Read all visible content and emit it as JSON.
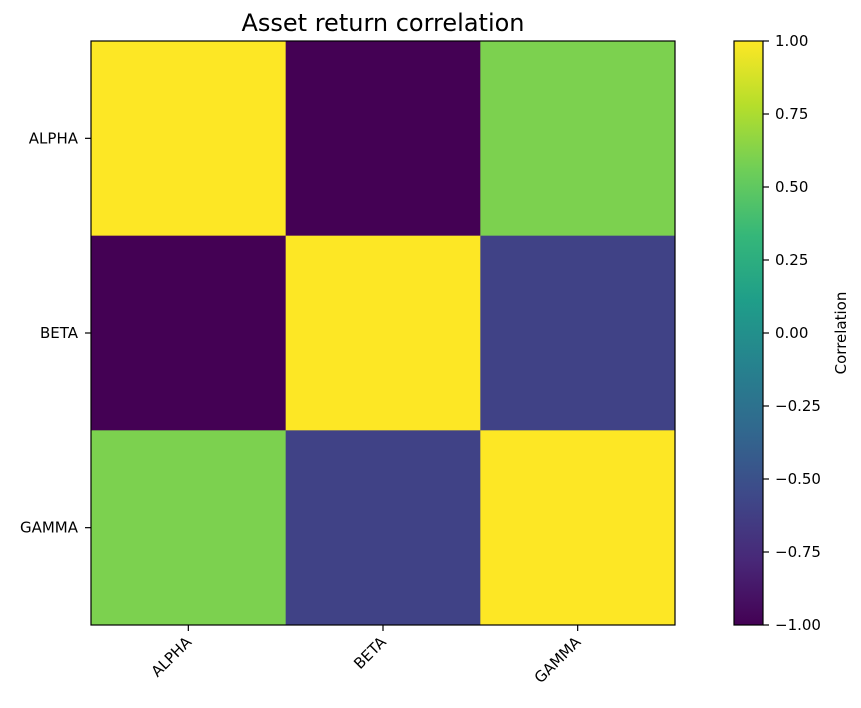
{
  "chart_data": {
    "type": "heatmap",
    "title": "Asset return correlation",
    "x_categories": [
      "ALPHA",
      "BETA",
      "GAMMA"
    ],
    "y_categories": [
      "ALPHA",
      "BETA",
      "GAMMA"
    ],
    "values": [
      [
        1.0,
        -1.0,
        0.6
      ],
      [
        -1.0,
        1.0,
        -0.6
      ],
      [
        0.6,
        -0.6,
        1.0
      ]
    ],
    "colorbar": {
      "label": "Correlation",
      "vmin": -1.0,
      "vmax": 1.0,
      "ticks": [
        1.0,
        0.75,
        0.5,
        0.25,
        0.0,
        -0.25,
        -0.5,
        -0.75,
        -1.0
      ],
      "tick_labels": [
        "1.00",
        "0.75",
        "0.50",
        "0.25",
        "0.00",
        "−0.25",
        "−0.50",
        "−0.75",
        "−1.00"
      ],
      "colormap": "viridis"
    },
    "colors": {
      "viridis_stops": [
        "#440154",
        "#482878",
        "#3e4989",
        "#31688e",
        "#26828e",
        "#1f9e89",
        "#35b779",
        "#6ece58",
        "#b5de2b",
        "#fde725"
      ]
    }
  }
}
